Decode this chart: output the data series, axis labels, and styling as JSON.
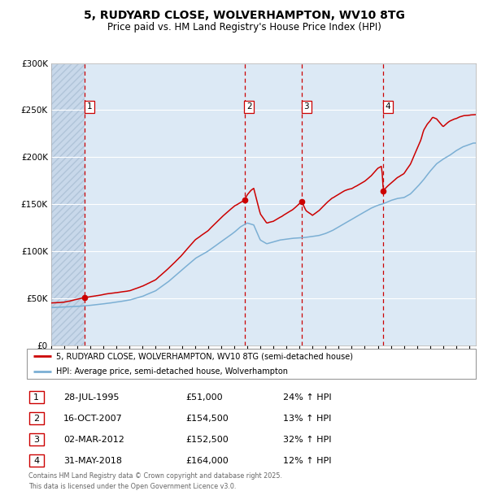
{
  "title_line1": "5, RUDYARD CLOSE, WOLVERHAMPTON, WV10 8TG",
  "title_line2": "Price paid vs. HM Land Registry's House Price Index (HPI)",
  "red_label": "5, RUDYARD CLOSE, WOLVERHAMPTON, WV10 8TG (semi-detached house)",
  "blue_label": "HPI: Average price, semi-detached house, Wolverhampton",
  "transactions": [
    {
      "num": 1,
      "date": "28-JUL-1995",
      "date_val": 1995.57,
      "price": 51000,
      "pct": "24%",
      "dir": "↑"
    },
    {
      "num": 2,
      "date": "16-OCT-2007",
      "date_val": 2007.79,
      "price": 154500,
      "pct": "13%",
      "dir": "↑"
    },
    {
      "num": 3,
      "date": "02-MAR-2012",
      "date_val": 2012.17,
      "price": 152500,
      "pct": "32%",
      "dir": "↑"
    },
    {
      "num": 4,
      "date": "31-MAY-2018",
      "date_val": 2018.42,
      "price": 164000,
      "pct": "12%",
      "dir": "↑"
    }
  ],
  "footer_line1": "Contains HM Land Registry data © Crown copyright and database right 2025.",
  "footer_line2": "This data is licensed under the Open Government Licence v3.0.",
  "xmin": 1993.0,
  "xmax": 2025.5,
  "ymin": 0,
  "ymax": 300000,
  "yticks": [
    0,
    50000,
    100000,
    150000,
    200000,
    250000,
    300000
  ],
  "ytick_labels": [
    "£0",
    "£50K",
    "£100K",
    "£150K",
    "£200K",
    "£250K",
    "£300K"
  ],
  "background_color": "#dce9f5",
  "hatch_color": "#c8d8ea",
  "grid_color": "#ffffff",
  "red_color": "#cc0000",
  "blue_color": "#7bafd4",
  "dashed_color": "#cc0000",
  "blue_anchors": [
    [
      1993.0,
      40000
    ],
    [
      1994.0,
      40500
    ],
    [
      1995.0,
      41200
    ],
    [
      1996.0,
      42500
    ],
    [
      1997.0,
      44000
    ],
    [
      1998.0,
      46000
    ],
    [
      1999.0,
      48000
    ],
    [
      2000.0,
      52000
    ],
    [
      2001.0,
      58000
    ],
    [
      2002.0,
      68000
    ],
    [
      2003.0,
      80000
    ],
    [
      2004.0,
      92000
    ],
    [
      2005.0,
      100000
    ],
    [
      2006.0,
      110000
    ],
    [
      2007.0,
      120000
    ],
    [
      2007.5,
      126000
    ],
    [
      2008.0,
      130000
    ],
    [
      2008.5,
      128000
    ],
    [
      2009.0,
      112000
    ],
    [
      2009.5,
      108000
    ],
    [
      2010.0,
      110000
    ],
    [
      2010.5,
      112000
    ],
    [
      2011.0,
      113000
    ],
    [
      2011.5,
      114000
    ],
    [
      2012.0,
      114500
    ],
    [
      2012.5,
      115000
    ],
    [
      2013.0,
      116000
    ],
    [
      2013.5,
      117000
    ],
    [
      2014.0,
      119000
    ],
    [
      2014.5,
      122000
    ],
    [
      2015.0,
      126000
    ],
    [
      2015.5,
      130000
    ],
    [
      2016.0,
      134000
    ],
    [
      2016.5,
      138000
    ],
    [
      2017.0,
      142000
    ],
    [
      2017.5,
      146000
    ],
    [
      2018.0,
      149000
    ],
    [
      2018.5,
      151000
    ],
    [
      2019.0,
      154000
    ],
    [
      2019.5,
      156000
    ],
    [
      2020.0,
      157000
    ],
    [
      2020.5,
      161000
    ],
    [
      2021.0,
      168000
    ],
    [
      2021.5,
      176000
    ],
    [
      2022.0,
      185000
    ],
    [
      2022.5,
      193000
    ],
    [
      2023.0,
      198000
    ],
    [
      2023.5,
      202000
    ],
    [
      2024.0,
      207000
    ],
    [
      2024.5,
      211000
    ],
    [
      2025.3,
      215000
    ]
  ],
  "red_anchors": [
    [
      1993.0,
      45000
    ],
    [
      1994.0,
      46000
    ],
    [
      1995.57,
      51000
    ],
    [
      1996.0,
      52000
    ],
    [
      1997.0,
      54000
    ],
    [
      1998.0,
      56000
    ],
    [
      1999.0,
      58000
    ],
    [
      2000.0,
      63000
    ],
    [
      2001.0,
      70000
    ],
    [
      2002.0,
      82000
    ],
    [
      2003.0,
      96000
    ],
    [
      2004.0,
      112000
    ],
    [
      2005.0,
      122000
    ],
    [
      2006.0,
      136000
    ],
    [
      2007.0,
      148000
    ],
    [
      2007.5,
      152000
    ],
    [
      2007.79,
      154500
    ],
    [
      2008.0,
      160000
    ],
    [
      2008.3,
      165000
    ],
    [
      2008.5,
      167000
    ],
    [
      2009.0,
      140000
    ],
    [
      2009.5,
      130000
    ],
    [
      2010.0,
      132000
    ],
    [
      2010.5,
      136000
    ],
    [
      2011.0,
      140000
    ],
    [
      2011.5,
      144000
    ],
    [
      2012.17,
      152500
    ],
    [
      2012.5,
      143000
    ],
    [
      2013.0,
      138000
    ],
    [
      2013.5,
      143000
    ],
    [
      2014.0,
      150000
    ],
    [
      2014.5,
      156000
    ],
    [
      2015.0,
      160000
    ],
    [
      2015.5,
      164000
    ],
    [
      2016.0,
      166000
    ],
    [
      2016.5,
      170000
    ],
    [
      2017.0,
      174000
    ],
    [
      2017.5,
      180000
    ],
    [
      2018.0,
      188000
    ],
    [
      2018.3,
      190000
    ],
    [
      2018.42,
      164000
    ],
    [
      2018.7,
      168000
    ],
    [
      2019.0,
      172000
    ],
    [
      2019.5,
      178000
    ],
    [
      2020.0,
      182000
    ],
    [
      2020.5,
      192000
    ],
    [
      2021.0,
      208000
    ],
    [
      2021.3,
      218000
    ],
    [
      2021.5,
      228000
    ],
    [
      2021.8,
      235000
    ],
    [
      2022.0,
      238000
    ],
    [
      2022.2,
      242000
    ],
    [
      2022.5,
      240000
    ],
    [
      2022.8,
      235000
    ],
    [
      2023.0,
      232000
    ],
    [
      2023.3,
      236000
    ],
    [
      2023.5,
      238000
    ],
    [
      2023.8,
      240000
    ],
    [
      2024.0,
      241000
    ],
    [
      2024.3,
      243000
    ],
    [
      2024.6,
      244000
    ],
    [
      2025.0,
      244500
    ],
    [
      2025.3,
      245000
    ]
  ]
}
